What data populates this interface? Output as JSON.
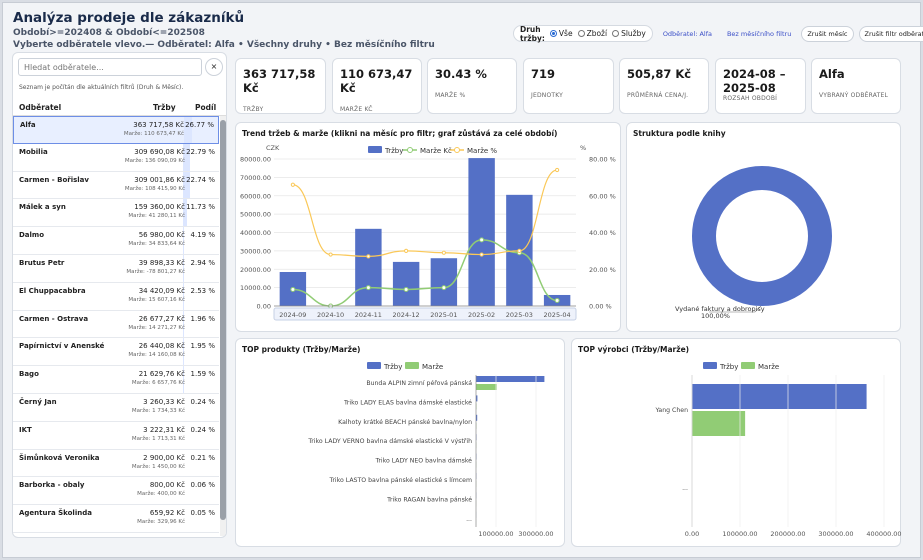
{
  "header": {
    "title": "Analýza prodeje dle zákazníků",
    "period": "Období>=202408 & Období<=202508",
    "hint": "Vyberte odběratele vlevo.— Odběratel: Alfa • Všechny druhy • Bez měsíčního filtru"
  },
  "filters": {
    "label": "Druh tržby:",
    "options": [
      "Vše",
      "Zboží",
      "Služby"
    ],
    "selected": "Vše",
    "customer_chip": "Odběratel: Alfa",
    "month_chip": "Bez měsíčního filtru",
    "reset_month": "Zrušit měsíc",
    "reset_customer": "Zrušit filtr odběratele"
  },
  "sidebar": {
    "search_placeholder": "Hledat odběratele...",
    "clear": "×",
    "note": "Seznam je počítán dle aktuálních filtrů (Druh & Měsíc).",
    "col_customer": "Odběratel",
    "col_sales": "Tržby",
    "col_share": "Podíl",
    "rows": [
      {
        "name": "Alfa",
        "sales": "363 717,58 Kč",
        "margin": "Marže: 110 673,47 Kč",
        "share": "26.77 %",
        "pct": 26.77
      },
      {
        "name": "Mobilia",
        "sales": "309 690,08 Kč",
        "margin": "Marže: 136 090,09 Kč",
        "share": "22.79 %",
        "pct": 22.79
      },
      {
        "name": "Carmen - Bořislav",
        "sales": "309 001,86 Kč",
        "margin": "Marže: 108 415,90 Kč",
        "share": "22.74 %",
        "pct": 22.74
      },
      {
        "name": "Málek a syn",
        "sales": "159 360,00 Kč",
        "margin": "Marže: 41 280,11 Kč",
        "share": "11.73 %",
        "pct": 11.73
      },
      {
        "name": "Dalmo",
        "sales": "56 980,00 Kč",
        "margin": "Marže: 34 833,64 Kč",
        "share": "4.19 %",
        "pct": 4.19
      },
      {
        "name": "Brutus Petr",
        "sales": "39 898,33 Kč",
        "margin": "Marže: -78 801,27 Kč",
        "share": "2.94 %",
        "pct": 2.94
      },
      {
        "name": "El Chuppacabbra",
        "sales": "34 420,09 Kč",
        "margin": "Marže: 15 607,16 Kč",
        "share": "2.53 %",
        "pct": 2.53
      },
      {
        "name": "Carmen - Ostrava",
        "sales": "26 677,27 Kč",
        "margin": "Marže: 14 271,27 Kč",
        "share": "1.96 %",
        "pct": 1.96
      },
      {
        "name": "Papírnictví v Anenské",
        "sales": "26 440,08 Kč",
        "margin": "Marže: 14 160,08 Kč",
        "share": "1.95 %",
        "pct": 1.95
      },
      {
        "name": "Bago",
        "sales": "21 629,76 Kč",
        "margin": "Marže: 6 657,76 Kč",
        "share": "1.59 %",
        "pct": 1.59
      },
      {
        "name": "Černý Jan",
        "sales": "3 260,33 Kč",
        "margin": "Marže: 1 734,33 Kč",
        "share": "0.24 %",
        "pct": 0.24
      },
      {
        "name": "IKT",
        "sales": "3 222,31 Kč",
        "margin": "Marže: 1 713,31 Kč",
        "share": "0.24 %",
        "pct": 0.24
      },
      {
        "name": "Šimůnková Veronika",
        "sales": "2 900,00 Kč",
        "margin": "Marže: 1 450,00 Kč",
        "share": "0.21 %",
        "pct": 0.21
      },
      {
        "name": "Barborka - obaly",
        "sales": "800,00 Kč",
        "margin": "Marže: 400,00 Kč",
        "share": "0.06 %",
        "pct": 0.06
      },
      {
        "name": "Agentura Školinda",
        "sales": "659,92 Kč",
        "margin": "Marže: 329,96 Kč",
        "share": "0.05 %",
        "pct": 0.05
      }
    ]
  },
  "kpis": [
    {
      "value": "363 717,58 Kč",
      "label": "TRŽBY"
    },
    {
      "value": "110 673,47 Kč",
      "label": "MARŽE KČ"
    },
    {
      "value": "30.43 %",
      "label": "MARŽE %"
    },
    {
      "value": "719",
      "label": "JEDNOTKY"
    },
    {
      "value": "505,87 Kč",
      "label": "PRŮMĚRNÁ CENA/J."
    },
    {
      "value": "2024-08 – 2025-08",
      "label": "ROZSAH OBDOBÍ"
    },
    {
      "value": "Alfa",
      "label": "VYBRANÝ ODBĚRATEL"
    }
  ],
  "trend": {
    "title": "Trend tržeb & marže (klikni na měsíc pro filtr; graf zůstává za celé období)",
    "unit_left": "CZK",
    "unit_right": "%",
    "legend": [
      "Tržby",
      "Marže Kč",
      "Marže %"
    ],
    "colors": {
      "sales": "#5470c6",
      "margin": "#91cc75",
      "pct": "#fac858"
    }
  },
  "structure": {
    "title": "Struktura podle knihy",
    "label": "Vydané faktury a dobropisy",
    "pct_label": "100,00%"
  },
  "top_products": {
    "title": "TOP produkty (Tržby/Marže)",
    "legend": [
      "Tržby",
      "Marže"
    ]
  },
  "top_makers": {
    "title": "TOP výrobci (Tržby/Marže)",
    "legend": [
      "Tržby",
      "Marže"
    ]
  },
  "chart_data": [
    {
      "type": "bar",
      "title": "Trend tržeb & marže (klikni na měsíc pro filtr; graf zůstává za celé období)",
      "categories": [
        "2024-09",
        "2024-10",
        "2024-11",
        "2024-12",
        "2025-01",
        "2025-02",
        "2025-03",
        "2025-04"
      ],
      "y_left_ticks": [
        "0.00",
        "10000.00",
        "20000.00",
        "30000.00",
        "40000.00",
        "50000.00",
        "60000.00",
        "70000.00",
        "80000.00"
      ],
      "y_right_ticks": [
        "0.00 %",
        "20.00 %",
        "40.00 %",
        "60.00 %",
        "80.00 %"
      ],
      "ylim": [
        0,
        80000
      ],
      "y2lim": [
        0,
        80
      ],
      "series": [
        {
          "name": "Tržby",
          "type": "bar",
          "values": [
            18500,
            0,
            42000,
            24000,
            26000,
            80500,
            60500,
            6000
          ]
        },
        {
          "name": "Marže Kč",
          "type": "line",
          "values": [
            9000,
            0,
            10000,
            9000,
            10000,
            36000,
            29000,
            3000
          ]
        },
        {
          "name": "Marže %",
          "type": "line",
          "axis": "right",
          "values": [
            66,
            28,
            27,
            30,
            29,
            28,
            30,
            74
          ]
        }
      ]
    },
    {
      "type": "pie",
      "title": "Struktura podle knihy",
      "categories": [
        "Vydané faktury a dobropisy"
      ],
      "values": [
        100
      ]
    },
    {
      "type": "bar",
      "orientation": "horizontal",
      "title": "TOP produkty (Tržby/Marže)",
      "categories": [
        "Bunda ALPIN zimní péřová  pánská",
        "Triko LADY ELAS  bavlna dámské elastické",
        "Kalhoty krátké BEACH pánské bavlna/nylon",
        "Triko LADY VERNO bavlna dámské elastické V výstřih",
        "Triko LADY NEO  bavlna dámské",
        "Triko LASTO bavlna pánské elastické s límcem",
        "Triko RAGAN bavlna pánské",
        "..."
      ],
      "x_ticks": [
        "100000.00",
        "300000.00"
      ],
      "xlim": [
        0,
        400000
      ],
      "series": [
        {
          "name": "Tržby",
          "values": [
            342000,
            7000,
            6000,
            2500,
            2000,
            1500,
            1000,
            500
          ]
        },
        {
          "name": "Marže",
          "values": [
            104000,
            2000,
            1500,
            1000,
            800,
            600,
            400,
            200
          ]
        }
      ]
    },
    {
      "type": "bar",
      "orientation": "horizontal",
      "title": "TOP výrobci (Tržby/Marže)",
      "categories": [
        "Yang Chen",
        "..."
      ],
      "x_ticks": [
        "0.00",
        "100000.00",
        "200000.00",
        "300000.00",
        "400000.00"
      ],
      "xlim": [
        0,
        400000
      ],
      "series": [
        {
          "name": "Tržby",
          "values": [
            363717.58,
            0
          ]
        },
        {
          "name": "Marže",
          "values": [
            110673.47,
            0
          ]
        }
      ]
    }
  ]
}
